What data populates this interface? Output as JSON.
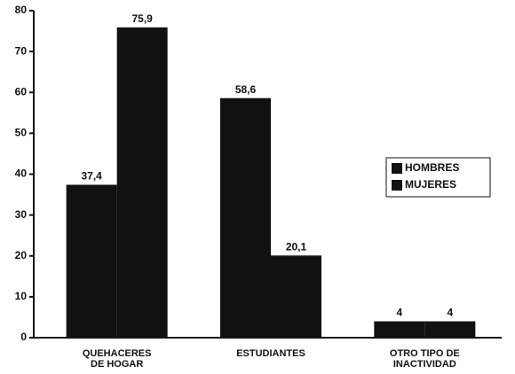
{
  "chart_data": {
    "type": "bar",
    "categories": [
      "QUEHACERES\nDE HOGAR",
      "ESTUDIANTES",
      "OTRO TIPO DE\nINACTIVIDAD"
    ],
    "series": [
      {
        "name": "HOMBRES",
        "color": "#111111",
        "values": [
          37.4,
          58.6,
          4
        ],
        "value_labels": [
          "37,4",
          "58,6",
          "4"
        ]
      },
      {
        "name": "MUJERES",
        "color": "#111111",
        "values": [
          75.9,
          20.1,
          4
        ],
        "value_labels": [
          "75,9",
          "20,1",
          "4"
        ]
      }
    ],
    "ylim": [
      0,
      80
    ],
    "yticks": [
      0,
      10,
      20,
      30,
      40,
      50,
      60,
      70,
      80
    ],
    "grid": false,
    "legend": "right"
  }
}
